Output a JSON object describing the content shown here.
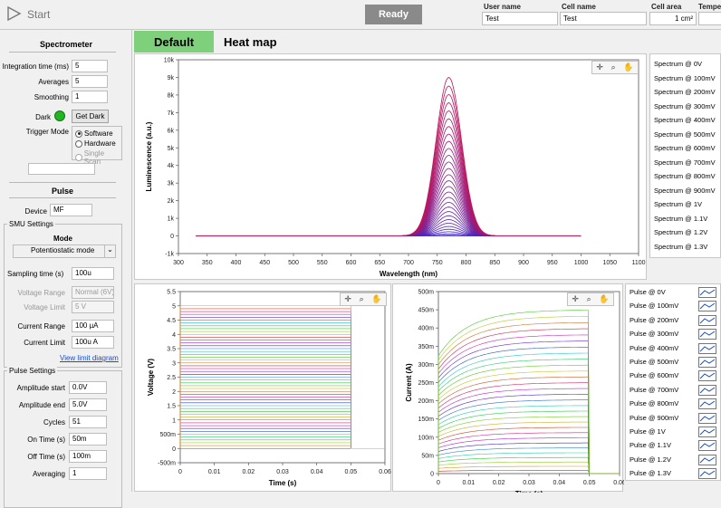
{
  "topbar": {
    "start_label": "Start",
    "status": "Ready",
    "user_name_label": "User name",
    "user_name": "Test",
    "cell_name_label": "Cell name",
    "cell_name": "Test",
    "cell_area_label": "Cell area",
    "cell_area": "1 cm²",
    "temperature_label": "Tempe"
  },
  "spectrometer": {
    "title": "Spectrometer",
    "integration_label": "Integration time (ms)",
    "integration": "5",
    "averages_label": "Averages",
    "averages": "5",
    "smoothing_label": "Smoothing",
    "smoothing": "1",
    "dark_label": "Dark",
    "get_dark_label": "Get Dark",
    "trigger_label": "Trigger Mode",
    "trigger_options": [
      "Software",
      "Hardware",
      "Single Scan"
    ],
    "trigger_selected": "Software"
  },
  "pulse": {
    "title": "Pulse",
    "device_label": "Device",
    "device": "MF"
  },
  "smu": {
    "title": "SMU Settings",
    "mode_label": "Mode",
    "mode": "Potentiostatic mode",
    "sampling_label": "Sampling time (s)",
    "sampling": "100u",
    "voltage_range_label": "Voltage Range",
    "voltage_range": "Normal (6V)",
    "voltage_limit_label": "Voltage Limit",
    "voltage_limit": "5 V",
    "current_range_label": "Current Range",
    "current_range": "100 µA",
    "current_limit_label": "Current Limit",
    "current_limit": "100u A",
    "view_limit_label": "View limit diagram"
  },
  "pulse_settings": {
    "title": "Pulse Settings",
    "amp_start_label": "Amplitude start",
    "amp_start": "0.0V",
    "amp_end_label": "Amplitude end",
    "amp_end": "5.0V",
    "cycles_label": "Cycles",
    "cycles": "51",
    "on_time_label": "On Time (s)",
    "on_time": "50m",
    "off_time_label": "Off Time (s)",
    "off_time": "100m",
    "averaging_label": "Averaging",
    "averaging": "1"
  },
  "tabs": {
    "default": "Default",
    "heatmap": "Heat map"
  },
  "toolbar_icons": [
    "crosshair-icon",
    "zoom-icon",
    "pan-hand-icon"
  ],
  "colors": {
    "accent_tab": "#7ed07a",
    "status_bg": "#8a8a8a",
    "dark_led": "#22b422"
  },
  "chart_data": [
    {
      "type": "line",
      "xlabel": "Wavelength (nm)",
      "ylabel": "Luminescence (a.u.)",
      "xlim": [
        300,
        1100
      ],
      "ylim": [
        -1000,
        10000
      ],
      "x_ticks": [
        "300",
        "350",
        "400",
        "450",
        "500",
        "550",
        "600",
        "650",
        "700",
        "750",
        "800",
        "850",
        "900",
        "950",
        "1000",
        "1050",
        "1100"
      ],
      "y_ticks": [
        "-1k",
        "0",
        "1k",
        "2k",
        "3k",
        "4k",
        "5k",
        "6k",
        "7k",
        "8k",
        "9k",
        "10k"
      ],
      "peak_wavelength": 770,
      "peak_value_max": 9000,
      "x_span": [
        330,
        1000
      ],
      "legend": [
        "Spectrum @ 0V",
        "Spectrum @ 100mV",
        "Spectrum @ 200mV",
        "Spectrum @ 300mV",
        "Spectrum @ 400mV",
        "Spectrum @ 500mV",
        "Spectrum @ 600mV",
        "Spectrum @ 700mV",
        "Spectrum @ 800mV",
        "Spectrum @ 900mV",
        "Spectrum @ 1V",
        "Spectrum @ 1.1V",
        "Spectrum @ 1.2V",
        "Spectrum @ 1.3V"
      ]
    },
    {
      "type": "line",
      "xlabel": "Time (s)",
      "ylabel": "Voltage (V)",
      "xlim": [
        0,
        0.06
      ],
      "ylim": [
        -0.5,
        5.5
      ],
      "x_ticks": [
        "0",
        "0.01",
        "0.02",
        "0.03",
        "0.04",
        "0.05",
        "0.06"
      ],
      "y_ticks": [
        "-500m",
        "0",
        "500m",
        "1",
        "1.5",
        "2",
        "2.5",
        "3",
        "3.5",
        "4",
        "4.5",
        "5",
        "5.5"
      ],
      "pulse_end": 0.05,
      "levels_from": 0,
      "levels_to": 5,
      "level_count": 51
    },
    {
      "type": "line",
      "xlabel": "Time (s)",
      "ylabel": "Current (A)",
      "xlim": [
        0,
        0.06
      ],
      "ylim": [
        0,
        0.5
      ],
      "x_ticks": [
        "0",
        "0.01",
        "0.02",
        "0.03",
        "0.04",
        "0.05",
        "0.06"
      ],
      "y_ticks": [
        "0",
        "50m",
        "100m",
        "150m",
        "200m",
        "250m",
        "300m",
        "350m",
        "400m",
        "450m",
        "500m"
      ],
      "pulse_end": 0.05,
      "final_current_max": 0.45,
      "legend": [
        "Pulse @ 0V",
        "Pulse @ 100mV",
        "Pulse @ 200mV",
        "Pulse @ 300mV",
        "Pulse @ 400mV",
        "Pulse @ 500mV",
        "Pulse @ 600mV",
        "Pulse @ 700mV",
        "Pulse @ 800mV",
        "Pulse @ 900mV",
        "Pulse @ 1V",
        "Pulse @ 1.1V",
        "Pulse @ 1.2V",
        "Pulse @ 1.3V"
      ]
    }
  ]
}
